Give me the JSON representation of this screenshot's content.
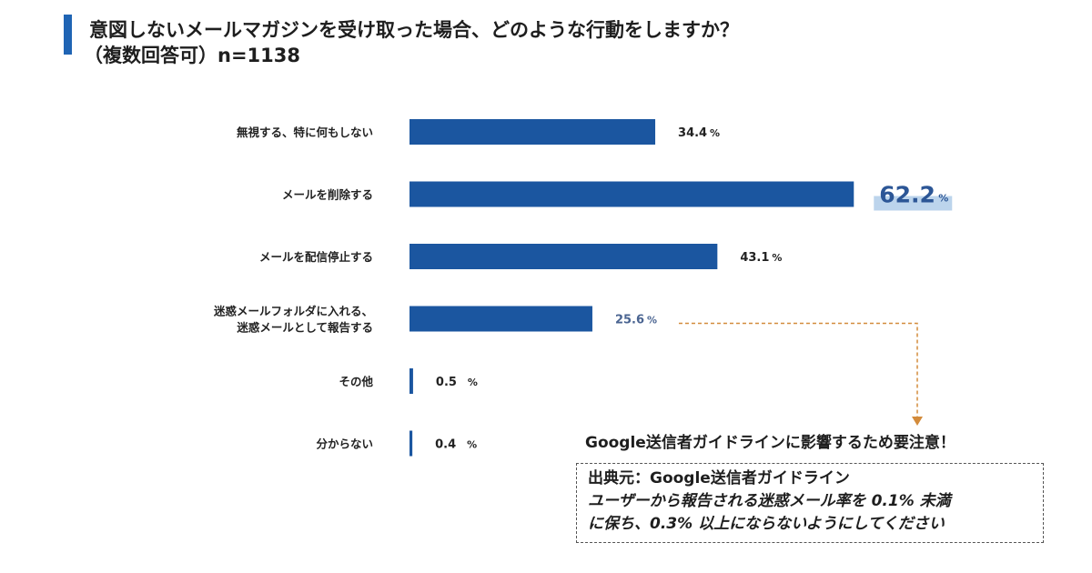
{
  "title": {
    "line1": "意図しないメールマガジンを受け取った場合、どのような行動をしますか？",
    "line2": "（複数回答可）n=1138"
  },
  "chart_data": {
    "type": "bar",
    "orientation": "horizontal",
    "categories": [
      [
        "無視する、特に何もしない"
      ],
      [
        "メールを削除する"
      ],
      [
        "メールを配信停止する"
      ],
      [
        "迷惑メールフォルダに入れる、",
        "迷惑メールとして報告する"
      ],
      [
        "その他"
      ],
      [
        "分からない"
      ]
    ],
    "values": [
      34.4,
      62.2,
      43.1,
      25.6,
      0.5,
      0.4
    ],
    "value_labels": [
      "34.4",
      "62.2",
      "43.1",
      "25.6",
      "0.5",
      "0.4"
    ],
    "unit": "%",
    "highlight_index": 1,
    "callout_index": 3,
    "bar_color": "#1b56a0",
    "highlight_color": "#bcd4ec",
    "callout_text_color": "#4a6491",
    "arrow_color": "#d38b3b",
    "grid": false
  },
  "note": {
    "heading": "Google送信者ガイドラインに影響するため要注意！",
    "source": "出典元：Google送信者ガイドライン",
    "body_line1": "ユーザーから報告される迷惑メール率を 0.1% 未満",
    "body_line2": "に保ち、0.3% 以上にならないようにしてください"
  }
}
